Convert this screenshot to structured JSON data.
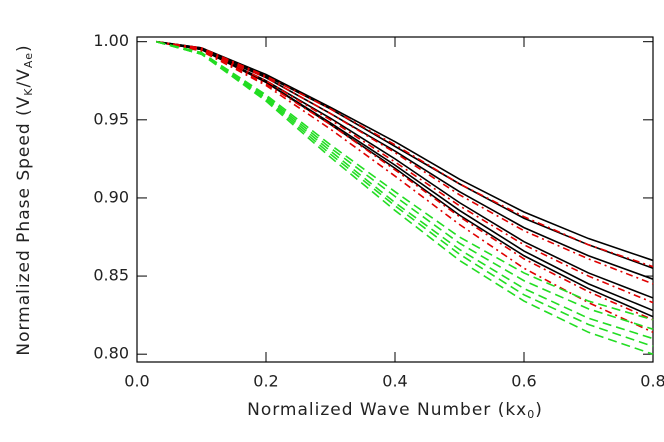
{
  "chart_data": {
    "type": "line",
    "xlabel": [
      "Normalized Wave Number (kx",
      "0",
      ")"
    ],
    "ylabel": [
      "Normalized Phase Speed (V",
      "K",
      "/V",
      "Ae",
      ")"
    ],
    "x": [
      0.03,
      0.1,
      0.2,
      0.3,
      0.4,
      0.5,
      0.6,
      0.7,
      0.8
    ],
    "xlim": [
      0,
      0.8
    ],
    "xticks": [
      {
        "value": 0,
        "label": "0.0"
      },
      {
        "value": 0.2,
        "label": "0.2"
      },
      {
        "value": 0.4,
        "label": "0.4"
      },
      {
        "value": 0.6,
        "label": "0.6"
      },
      {
        "value": 0.8,
        "label": "0.8"
      }
    ],
    "ylim": [
      0.795,
      1.003
    ],
    "yticks": [
      {
        "value": 0.8,
        "label": "0.80"
      },
      {
        "value": 0.85,
        "label": "0.85"
      },
      {
        "value": 0.9,
        "label": "0.90"
      },
      {
        "value": 0.95,
        "label": "0.95"
      },
      {
        "value": 1,
        "label": "1.00"
      }
    ],
    "series": [
      {
        "color": "#000000",
        "style": "solid",
        "values": [
          1,
          0.996,
          0.979,
          0.958,
          0.936,
          0.912,
          0.891,
          0.874,
          0.86
        ]
      },
      {
        "color": "#000000",
        "style": "solid",
        "values": [
          1,
          0.996,
          0.978,
          0.957,
          0.933,
          0.909,
          0.887,
          0.87,
          0.855
        ]
      },
      {
        "color": "#000000",
        "style": "solid",
        "values": [
          1,
          0.995,
          0.977,
          0.954,
          0.93,
          0.904,
          0.881,
          0.863,
          0.848
        ]
      },
      {
        "color": "#000000",
        "style": "solid",
        "values": [
          1,
          0.995,
          0.975,
          0.951,
          0.925,
          0.897,
          0.872,
          0.852,
          0.836
        ]
      },
      {
        "color": "#000000",
        "style": "solid",
        "values": [
          1,
          0.995,
          0.974,
          0.948,
          0.921,
          0.892,
          0.866,
          0.845,
          0.828
        ]
      },
      {
        "color": "#000000",
        "style": "solid",
        "values": [
          1,
          0.995,
          0.974,
          0.947,
          0.919,
          0.889,
          0.863,
          0.842,
          0.824
        ]
      },
      {
        "color": "#e00000",
        "style": "dashdot",
        "values": [
          1,
          0.996,
          0.978,
          0.957,
          0.934,
          0.909,
          0.888,
          0.87,
          0.856
        ]
      },
      {
        "color": "#e00000",
        "style": "dashdot",
        "values": [
          1,
          0.995,
          0.977,
          0.954,
          0.929,
          0.902,
          0.879,
          0.861,
          0.845
        ]
      },
      {
        "color": "#e00000",
        "style": "dashdot",
        "values": [
          1,
          0.995,
          0.975,
          0.95,
          0.923,
          0.895,
          0.87,
          0.85,
          0.833
        ]
      },
      {
        "color": "#e00000",
        "style": "dashdot",
        "values": [
          1,
          0.995,
          0.973,
          0.947,
          0.918,
          0.888,
          0.861,
          0.84,
          0.822
        ]
      },
      {
        "color": "#e00000",
        "style": "dashdot",
        "values": [
          1,
          0.994,
          0.972,
          0.944,
          0.914,
          0.883,
          0.855,
          0.833,
          0.814
        ]
      },
      {
        "color": "#22dd22",
        "style": "dashed",
        "values": [
          1,
          0.993,
          0.966,
          0.934,
          0.904,
          0.875,
          0.852,
          0.834,
          0.822
        ]
      },
      {
        "color": "#22dd22",
        "style": "dashed",
        "values": [
          1,
          0.993,
          0.965,
          0.932,
          0.901,
          0.871,
          0.847,
          0.829,
          0.816
        ]
      },
      {
        "color": "#22dd22",
        "style": "dashed",
        "values": [
          1,
          0.992,
          0.964,
          0.93,
          0.897,
          0.867,
          0.842,
          0.823,
          0.81
        ]
      },
      {
        "color": "#22dd22",
        "style": "dashed",
        "values": [
          1,
          0.992,
          0.963,
          0.928,
          0.895,
          0.864,
          0.838,
          0.819,
          0.805
        ]
      },
      {
        "color": "#22dd22",
        "style": "dashed",
        "values": [
          1,
          0.992,
          0.962,
          0.926,
          0.892,
          0.86,
          0.834,
          0.814,
          0.8
        ]
      }
    ]
  }
}
